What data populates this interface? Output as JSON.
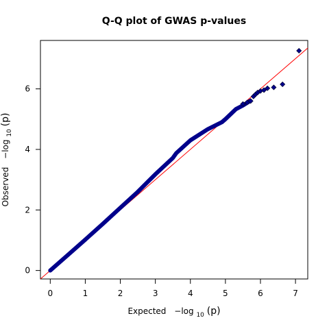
{
  "chart_data": {
    "type": "scatter",
    "title": "Q-Q plot of GWAS p-values",
    "xlabel": {
      "prefix": "Expected",
      "base": "−log",
      "sub": "10",
      "arg": "(p)"
    },
    "ylabel": {
      "prefix": "Observed",
      "base": "−log",
      "sub": "10",
      "arg": "(p)"
    },
    "xlim": [
      -0.28,
      7.35
    ],
    "ylim": [
      -0.28,
      7.6
    ],
    "xticks": [
      0,
      1,
      2,
      3,
      4,
      5,
      6,
      7
    ],
    "yticks": [
      0,
      2,
      4,
      6
    ],
    "xtick_labels": [
      "0",
      "1",
      "2",
      "3",
      "4",
      "5",
      "6",
      "7"
    ],
    "ytick_labels": [
      "0",
      "2",
      "4",
      "6"
    ],
    "reference_line": {
      "slope": 1,
      "intercept": 0,
      "color": "#ff0000"
    },
    "point_color": "#00008b",
    "curve": {
      "x": [
        0,
        0.5,
        1.0,
        1.5,
        2.0,
        2.5,
        3.0,
        3.5,
        3.6,
        4.0,
        4.5,
        4.9,
        5.0,
        5.3,
        5.5,
        5.7
      ],
      "y": [
        0,
        0.51,
        1.02,
        1.54,
        2.07,
        2.6,
        3.18,
        3.72,
        3.88,
        4.3,
        4.67,
        4.9,
        5.0,
        5.33,
        5.45,
        5.6
      ]
    },
    "tail_points": [
      {
        "x": 5.5,
        "y": 5.5
      },
      {
        "x": 5.62,
        "y": 5.55
      },
      {
        "x": 5.72,
        "y": 5.6
      },
      {
        "x": 5.8,
        "y": 5.75
      },
      {
        "x": 5.86,
        "y": 5.82
      },
      {
        "x": 5.92,
        "y": 5.88
      },
      {
        "x": 6.0,
        "y": 5.93
      },
      {
        "x": 6.1,
        "y": 5.96
      },
      {
        "x": 6.2,
        "y": 6.02
      },
      {
        "x": 6.38,
        "y": 6.05
      },
      {
        "x": 6.63,
        "y": 6.15
      },
      {
        "x": 7.1,
        "y": 7.26
      }
    ]
  }
}
